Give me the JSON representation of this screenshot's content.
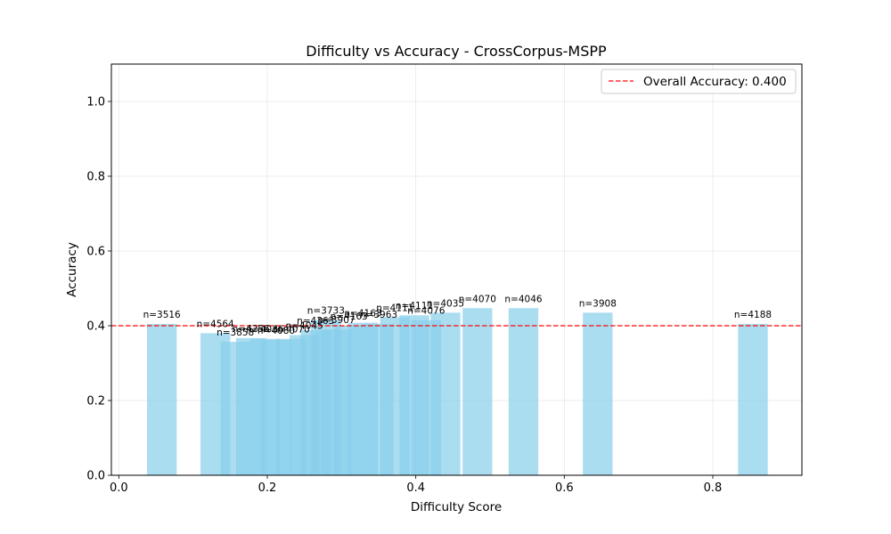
{
  "chart_data": {
    "type": "bar",
    "title": "Difficulty vs Accuracy - CrossCorpus-MSPP",
    "xlabel": "Difficulty Score",
    "ylabel": "Accuracy",
    "xlim": [
      -0.01,
      0.92
    ],
    "ylim": [
      0,
      1.1
    ],
    "xticks": [
      0.0,
      0.2,
      0.4,
      0.6,
      0.8
    ],
    "yticks": [
      0.0,
      0.2,
      0.4,
      0.6,
      0.8,
      1.0
    ],
    "xtick_labels": [
      "0.0",
      "0.2",
      "0.4",
      "0.6",
      "0.8"
    ],
    "ytick_labels": [
      "0.0",
      "0.2",
      "0.4",
      "0.6",
      "0.8",
      "1.0"
    ],
    "grid": true,
    "bar_color": "#87ceeb",
    "bar_alpha": 0.7,
    "bar_width": 0.04,
    "bars": [
      {
        "x": 0.058,
        "y": 0.405,
        "label": "n=3516"
      },
      {
        "x": 0.13,
        "y": 0.38,
        "label": "n=4564"
      },
      {
        "x": 0.157,
        "y": 0.357,
        "label": "n=3858"
      },
      {
        "x": 0.178,
        "y": 0.367,
        "label": "n=4256"
      },
      {
        "x": 0.197,
        "y": 0.365,
        "label": "n=4036"
      },
      {
        "x": 0.212,
        "y": 0.362,
        "label": "n=4080"
      },
      {
        "x": 0.232,
        "y": 0.365,
        "label": "n=4070"
      },
      {
        "x": 0.25,
        "y": 0.375,
        "label": "n=4045"
      },
      {
        "x": 0.265,
        "y": 0.388,
        "label": "n=4363"
      },
      {
        "x": 0.279,
        "y": 0.415,
        "label": "n=3733"
      },
      {
        "x": 0.293,
        "y": 0.39,
        "label": "n=3907"
      },
      {
        "x": 0.31,
        "y": 0.4,
        "label": "n=4163"
      },
      {
        "x": 0.329,
        "y": 0.408,
        "label": "n=4163"
      },
      {
        "x": 0.35,
        "y": 0.405,
        "label": "n=3963"
      },
      {
        "x": 0.372,
        "y": 0.423,
        "label": "n=4111"
      },
      {
        "x": 0.398,
        "y": 0.428,
        "label": "n=4111"
      },
      {
        "x": 0.414,
        "y": 0.415,
        "label": "n=4076"
      },
      {
        "x": 0.44,
        "y": 0.435,
        "label": "n=4035"
      },
      {
        "x": 0.483,
        "y": 0.447,
        "label": "n=4070"
      },
      {
        "x": 0.545,
        "y": 0.447,
        "label": "n=4046"
      },
      {
        "x": 0.645,
        "y": 0.435,
        "label": "n=3908"
      },
      {
        "x": 0.854,
        "y": 0.405,
        "label": "n=4188"
      }
    ],
    "reference_line": {
      "y": 0.4,
      "color": "#ff0000",
      "label": "Overall Accuracy: 0.400"
    },
    "legend": {
      "placement": "top-right"
    }
  }
}
